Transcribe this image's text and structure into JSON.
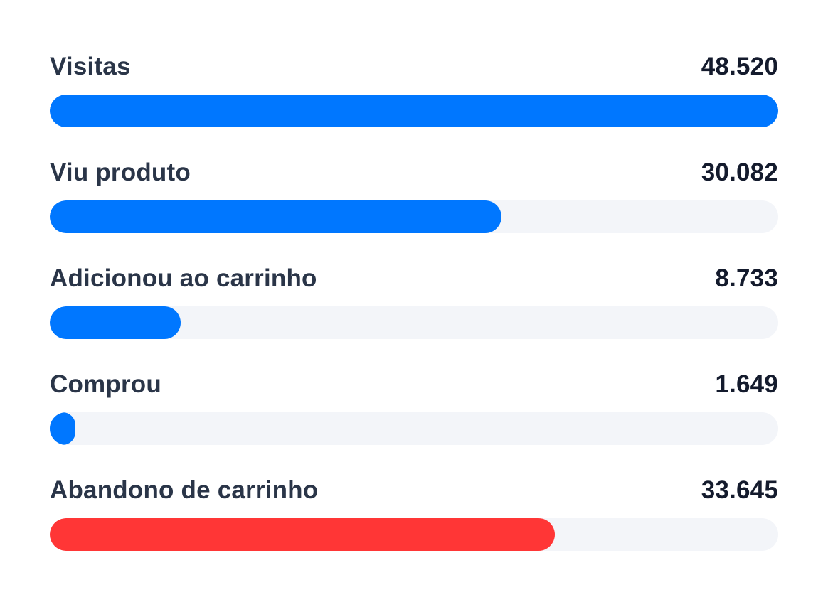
{
  "chart_data": {
    "type": "bar",
    "orientation": "horizontal",
    "categories": [
      "Visitas",
      "Viu produto",
      "Adicionou ao carrinho",
      "Comprou",
      "Abandono de carrinho"
    ],
    "values": [
      48520,
      30082,
      8733,
      1649,
      33645
    ],
    "value_labels": [
      "48.520",
      "30.082",
      "8.733",
      "1.649",
      "33.645"
    ],
    "max": 48520,
    "bar_colors": [
      "#0077ff",
      "#0077ff",
      "#0077ff",
      "#0077ff",
      "#ff3636"
    ],
    "track_color": "#f3f5f9",
    "grid": false,
    "legend": "none"
  },
  "rows": [
    {
      "label": "Visitas",
      "value": "48.520"
    },
    {
      "label": "Viu produto",
      "value": "30.082"
    },
    {
      "label": "Adicionou ao carrinho",
      "value": "8.733"
    },
    {
      "label": "Comprou",
      "value": "1.649"
    },
    {
      "label": "Abandono de carrinho",
      "value": "33.645"
    }
  ]
}
